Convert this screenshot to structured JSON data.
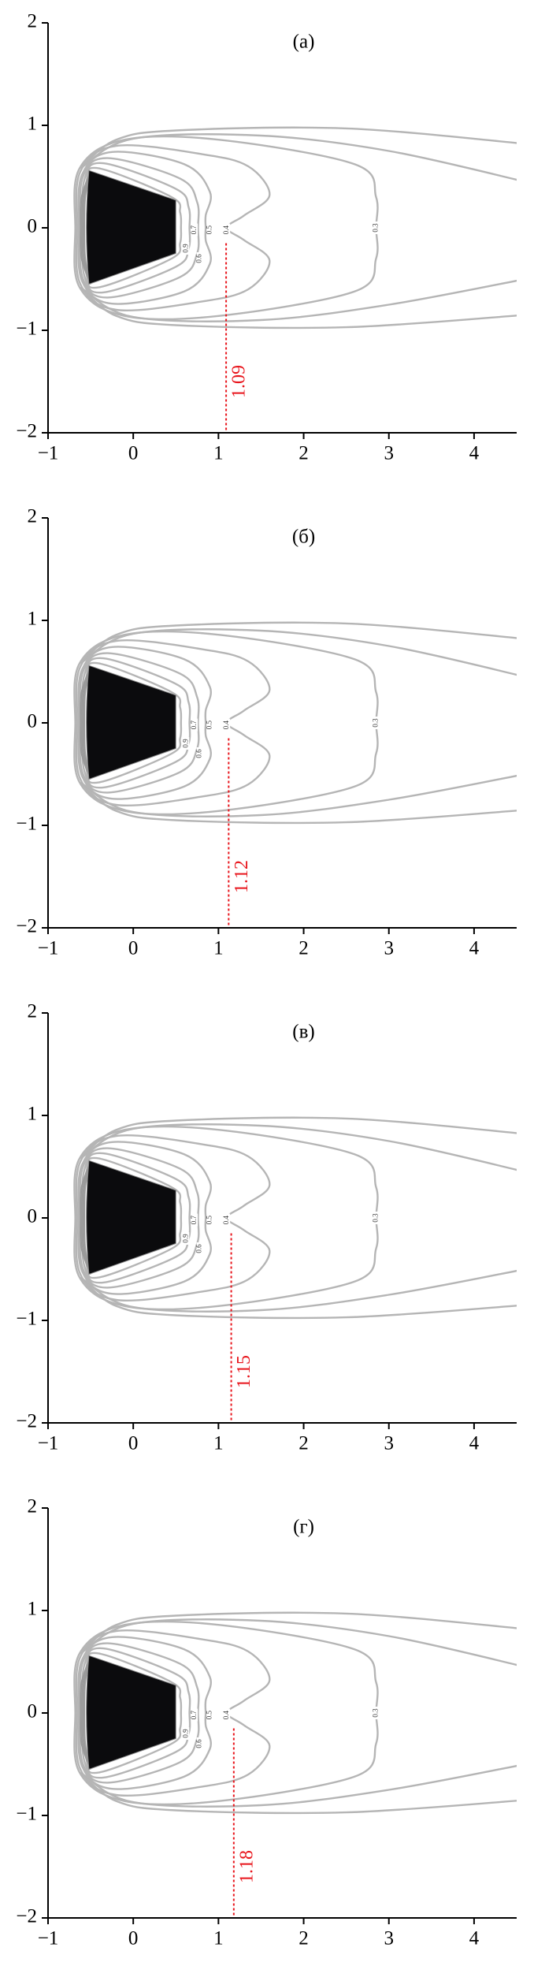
{
  "chart_data": [
    {
      "type": "contour",
      "title": "(а)",
      "xlim": [
        -1,
        4.5
      ],
      "ylim": [
        -2,
        2
      ],
      "xticks": [
        {
          "value": -1,
          "label": "−1"
        },
        0,
        1,
        2,
        3,
        4
      ],
      "yticks": [
        {
          "value": -2,
          "label": "−2"
        },
        {
          "value": -1,
          "label": "−1"
        },
        0,
        1,
        2
      ],
      "contour_levels": [
        0.9,
        0.7,
        0.6,
        0.5,
        0.4,
        0.3
      ],
      "marker": 1.09,
      "marker_color": "#e8141b"
    },
    {
      "type": "contour",
      "title": "(б)",
      "xlim": [
        -1,
        4.5
      ],
      "ylim": [
        -2,
        2
      ],
      "xticks": [
        {
          "value": -1,
          "label": "−1"
        },
        0,
        1,
        2,
        3,
        4
      ],
      "yticks": [
        {
          "value": -2,
          "label": "−2"
        },
        {
          "value": -1,
          "label": "−1"
        },
        0,
        1,
        2
      ],
      "contour_levels": [
        0.9,
        0.7,
        0.6,
        0.5,
        0.4,
        0.3
      ],
      "marker": 1.12,
      "marker_color": "#e8141b"
    },
    {
      "type": "contour",
      "title": "(в)",
      "xlim": [
        -1,
        4.5
      ],
      "ylim": [
        -2,
        2
      ],
      "xticks": [
        {
          "value": -1,
          "label": "−1"
        },
        0,
        1,
        2,
        3,
        4
      ],
      "yticks": [
        {
          "value": -2,
          "label": "−2"
        },
        {
          "value": -1,
          "label": "−1"
        },
        0,
        1,
        2
      ],
      "contour_levels": [
        0.9,
        0.7,
        0.6,
        0.5,
        0.4,
        0.3
      ],
      "marker": 1.15,
      "marker_color": "#e8141b"
    },
    {
      "type": "contour",
      "title": "(г)",
      "xlim": [
        -1,
        4.5
      ],
      "ylim": [
        -2,
        2
      ],
      "xticks": [
        {
          "value": -1,
          "label": "−1"
        },
        0,
        1,
        2,
        3,
        4
      ],
      "yticks": [
        {
          "value": -2,
          "label": "−2"
        },
        {
          "value": -1,
          "label": "−1"
        },
        0,
        1,
        2
      ],
      "contour_levels": [
        0.9,
        0.7,
        0.6,
        0.5,
        0.4,
        0.3
      ],
      "marker": 1.18,
      "marker_color": "#e8141b"
    }
  ]
}
